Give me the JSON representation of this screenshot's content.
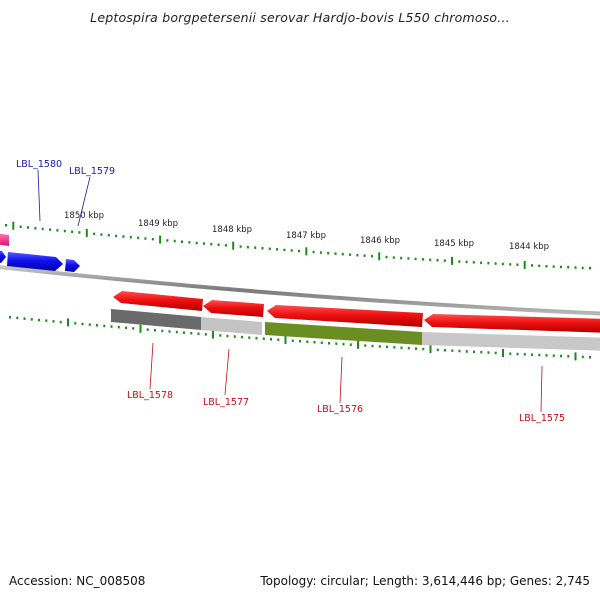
{
  "title": "Leptospira borgpetersenii serovar Hardjo-bovis L550 chromoso...",
  "footer": {
    "accession": "Accession: NC_008508",
    "summary": "Topology: circular; Length: 3,614,446 bp; Genes: 2,745"
  },
  "colors": {
    "forward_gene": "#1010ee",
    "reverse_gene": "#ee1010",
    "magenta_gene": "#ff2d8c",
    "tick": "#1e8a1e",
    "backbone": "#888888",
    "dark_gray_bar": "#6a6a6a",
    "light_gray_bar": "#bdbdbd",
    "green_bar": "#6b8e23",
    "forward_label": "#1a1aa0",
    "reverse_label": "#c01010"
  },
  "kbp_ticks": [
    {
      "label": "1850 kbp"
    },
    {
      "label": "1849 kbp"
    },
    {
      "label": "1848 kbp"
    },
    {
      "label": "1847 kbp"
    },
    {
      "label": "1846 kbp"
    },
    {
      "label": "1845 kbp"
    },
    {
      "label": "1844 kbp"
    }
  ],
  "genes": [
    {
      "label": "LBL_1580",
      "strand": "forward"
    },
    {
      "label": "LBL_1579",
      "strand": "forward"
    },
    {
      "label": "LBL_1578",
      "strand": "reverse"
    },
    {
      "label": "LBL_1577",
      "strand": "reverse"
    },
    {
      "label": "LBL_1576",
      "strand": "reverse"
    },
    {
      "label": "LBL_1575",
      "strand": "reverse"
    }
  ]
}
